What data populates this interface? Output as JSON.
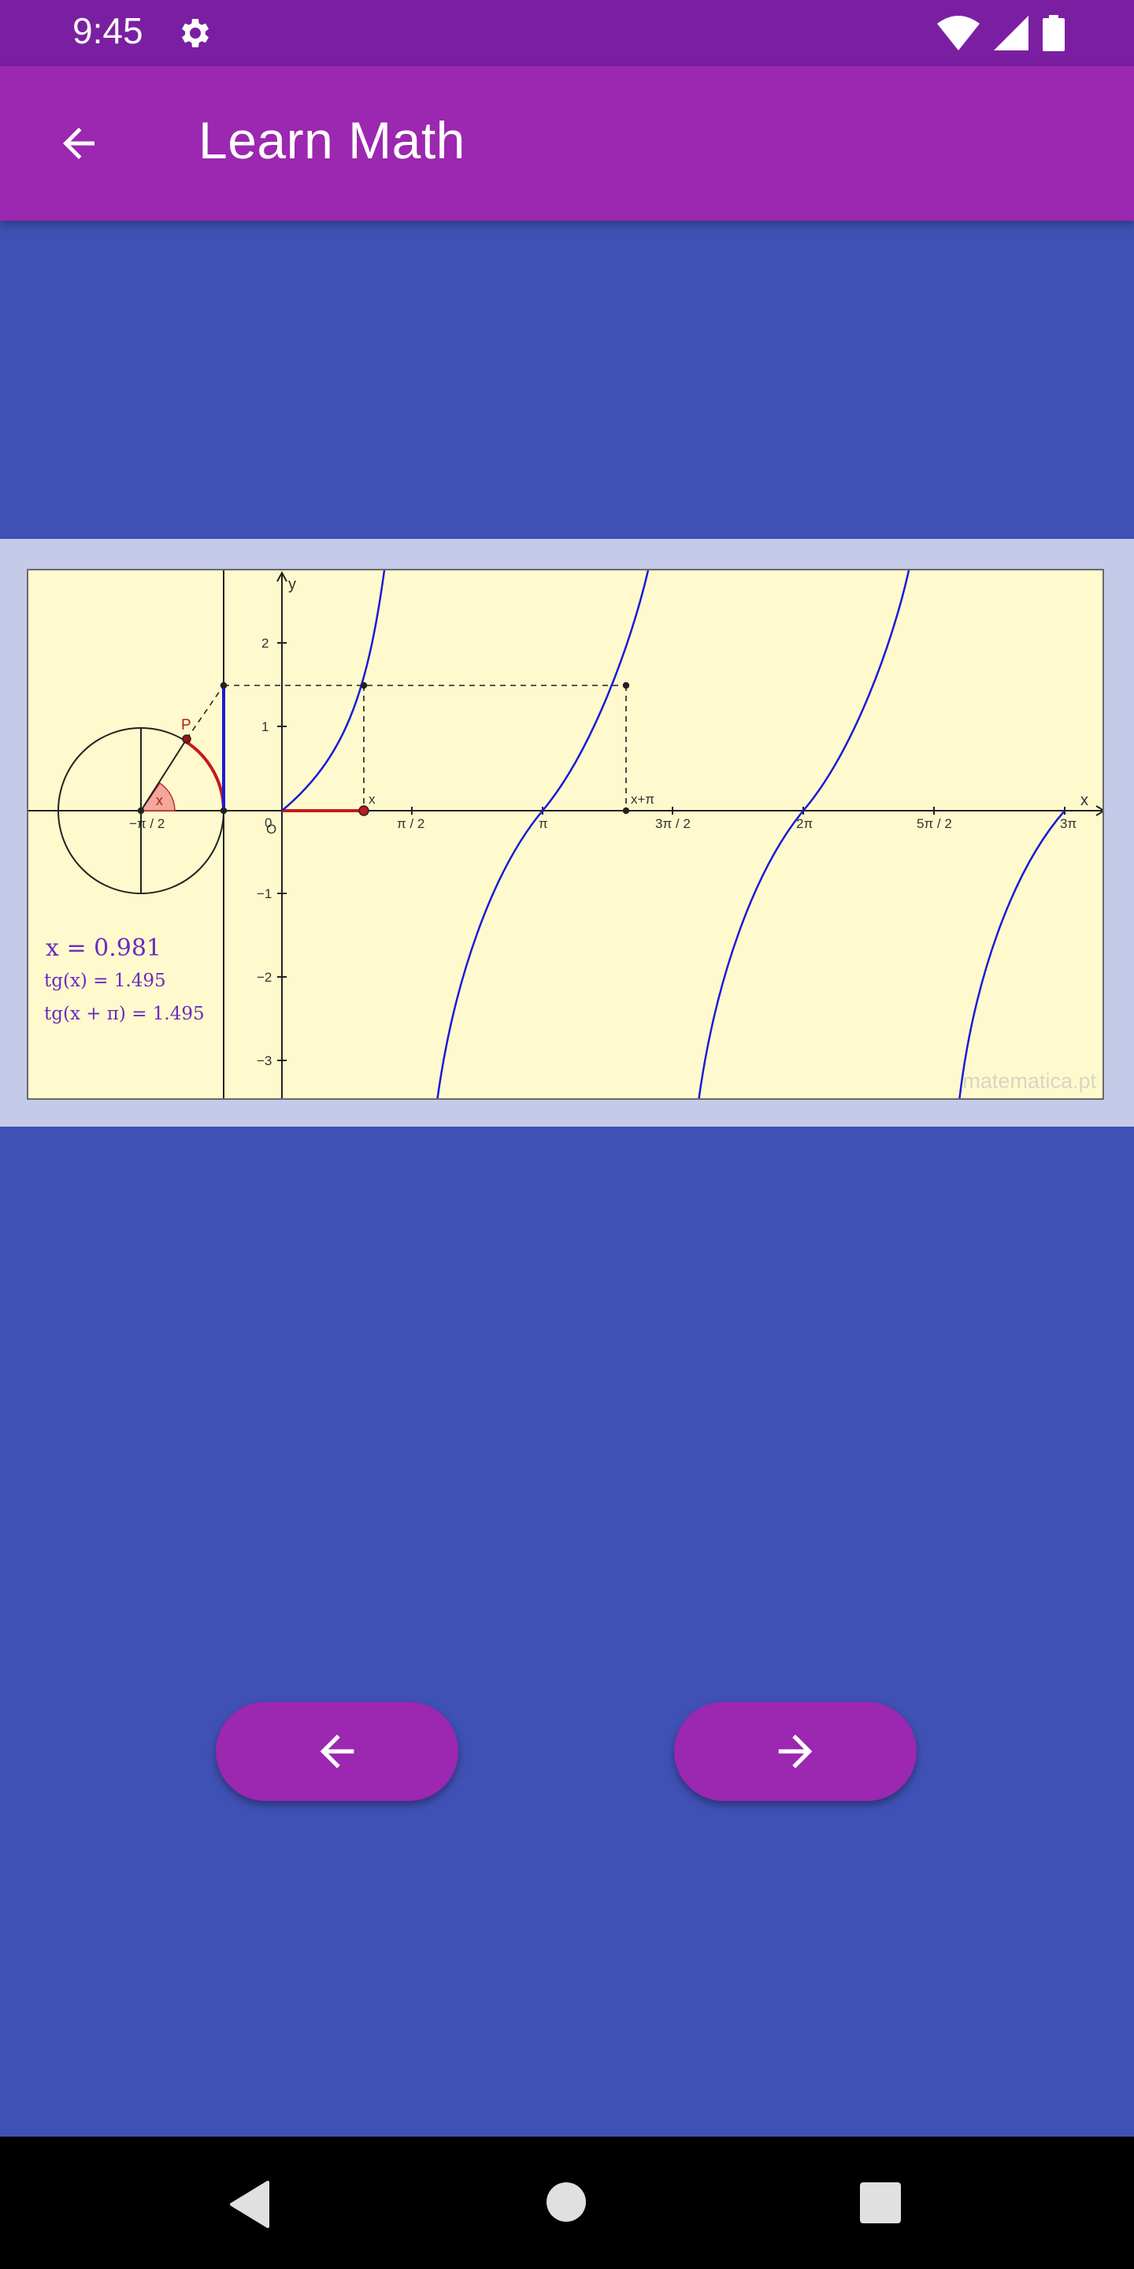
{
  "status_bar": {
    "time": "9:45"
  },
  "app_bar": {
    "title": "Learn Math"
  },
  "graph": {
    "y_axis_label": "y",
    "x_axis_label": "x",
    "x_ticks": [
      "−π / 2",
      "π / 2",
      "π",
      "3π / 2",
      "2π",
      "5π / 2",
      "3π"
    ],
    "y_ticks": [
      "2",
      "1",
      "−1",
      "−2",
      "−3"
    ],
    "origin_label": "0",
    "origin_circle_label": "O",
    "point_p_label": "P",
    "angle_label": "x",
    "point_x_label": "x",
    "point_x_pi_label": "x+π",
    "readout_x": "x = 0.981",
    "readout_tg_x": "tg(x) = 1.495",
    "readout_tg_x_pi": "tg(x + π) = 1.495",
    "watermark": "matematica.pt"
  },
  "colors": {
    "status_bar": "#7b1fa2",
    "app_bar": "#9c27b0",
    "background": "#3f51b5",
    "panel": "#c5cae9",
    "plot_bg": "#fffacd",
    "curve": "#1a1ad8",
    "red": "#c41a1a",
    "readout": "#6a2bc2"
  },
  "nav": {
    "prev_icon": "arrow-left-icon",
    "next_icon": "arrow-right-icon"
  }
}
